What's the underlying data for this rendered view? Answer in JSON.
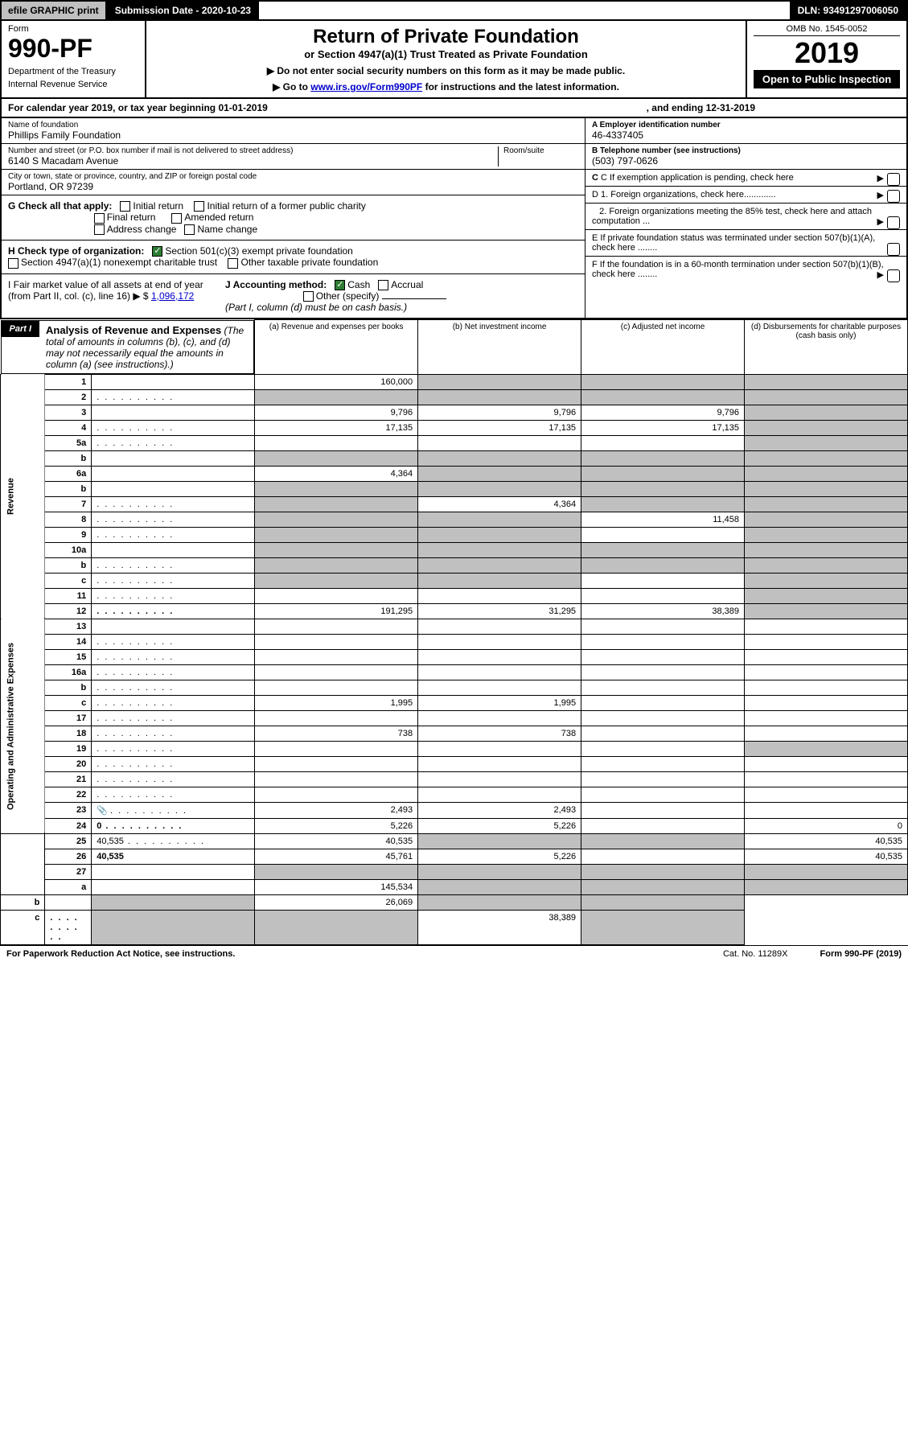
{
  "topbar": {
    "print": "efile GRAPHIC print",
    "submission": "Submission Date - 2020-10-23",
    "dln": "DLN: 93491297006050"
  },
  "header": {
    "form_label": "Form",
    "form_num": "990-PF",
    "dept1": "Department of the Treasury",
    "dept2": "Internal Revenue Service",
    "title": "Return of Private Foundation",
    "subtitle": "or Section 4947(a)(1) Trust Treated as Private Foundation",
    "note1": "▶ Do not enter social security numbers on this form as it may be made public.",
    "note2_pre": "▶ Go to ",
    "note2_link": "www.irs.gov/Form990PF",
    "note2_post": " for instructions and the latest information.",
    "omb": "OMB No. 1545-0052",
    "year": "2019",
    "open": "Open to Public Inspection"
  },
  "calyear": {
    "text": "For calendar year 2019, or tax year beginning 01-01-2019",
    "end": ", and ending 12-31-2019"
  },
  "info": {
    "name_label": "Name of foundation",
    "name": "Phillips Family Foundation",
    "addr_label": "Number and street (or P.O. box number if mail is not delivered to street address)",
    "addr": "6140 S Macadam Avenue",
    "room_label": "Room/suite",
    "city_label": "City or town, state or province, country, and ZIP or foreign postal code",
    "city": "Portland, OR  97239",
    "ein_label": "A Employer identification number",
    "ein": "46-4337405",
    "tel_label": "B Telephone number (see instructions)",
    "tel": "(503) 797-0626",
    "c": "C If exemption application is pending, check here",
    "d1": "D 1. Foreign organizations, check here.............",
    "d2": "2. Foreign organizations meeting the 85% test, check here and attach computation ...",
    "e": "E If private foundation status was terminated under section 507(b)(1)(A), check here ........",
    "f": "F If the foundation is in a 60-month termination under section 507(b)(1)(B), check here ........"
  },
  "checks": {
    "g_label": "G Check all that apply:",
    "g_opts": [
      "Initial return",
      "Final return",
      "Address change",
      "Initial return of a former public charity",
      "Amended return",
      "Name change"
    ],
    "h_label": "H Check type of organization:",
    "h1": "Section 501(c)(3) exempt private foundation",
    "h2": "Section 4947(a)(1) nonexempt charitable trust",
    "h3": "Other taxable private foundation",
    "i_label": "I Fair market value of all assets at end of year (from Part II, col. (c), line 16) ▶ $",
    "i_val": "1,096,172",
    "j_label": "J Accounting method:",
    "j_cash": "Cash",
    "j_accrual": "Accrual",
    "j_other": "Other (specify)",
    "j_note": "(Part I, column (d) must be on cash basis.)"
  },
  "part1": {
    "tag": "Part I",
    "title": "Analysis of Revenue and Expenses",
    "title_note": " (The total of amounts in columns (b), (c), and (d) may not necessarily equal the amounts in column (a) (see instructions).)",
    "col_a": "(a)   Revenue and expenses per books",
    "col_b": "(b)  Net investment income",
    "col_c": "(c)  Adjusted net income",
    "col_d": "(d)  Disbursements for charitable purposes (cash basis only)"
  },
  "revenue_label": "Revenue",
  "expenses_label": "Operating and Administrative Expenses",
  "rows": [
    {
      "n": "1",
      "d": "",
      "a": "160,000",
      "b": "",
      "c": "",
      "shB": true,
      "shC": true,
      "shD": true
    },
    {
      "n": "2",
      "d": "",
      "a": "",
      "b": "",
      "c": "",
      "shA": true,
      "shB": true,
      "shC": true,
      "shD": true,
      "dots": true
    },
    {
      "n": "3",
      "d": "",
      "a": "9,796",
      "b": "9,796",
      "c": "9,796",
      "shD": true
    },
    {
      "n": "4",
      "d": "",
      "a": "17,135",
      "b": "17,135",
      "c": "17,135",
      "shD": true,
      "dots": true
    },
    {
      "n": "5a",
      "d": "",
      "a": "",
      "b": "",
      "c": "",
      "shD": true,
      "dots": true
    },
    {
      "n": "b",
      "d": "",
      "a": "",
      "b": "",
      "c": "",
      "shA": true,
      "shB": true,
      "shC": true,
      "shD": true
    },
    {
      "n": "6a",
      "d": "",
      "a": "4,364",
      "b": "",
      "c": "",
      "shB": true,
      "shC": true,
      "shD": true
    },
    {
      "n": "b",
      "d": "",
      "a": "",
      "b": "",
      "c": "",
      "shA": true,
      "shB": true,
      "shC": true,
      "shD": true
    },
    {
      "n": "7",
      "d": "",
      "a": "",
      "b": "4,364",
      "c": "",
      "shA": true,
      "shC": true,
      "shD": true,
      "dots": true
    },
    {
      "n": "8",
      "d": "",
      "a": "",
      "b": "",
      "c": "11,458",
      "shA": true,
      "shB": true,
      "shD": true,
      "dots": true
    },
    {
      "n": "9",
      "d": "",
      "a": "",
      "b": "",
      "c": "",
      "shA": true,
      "shB": true,
      "shD": true,
      "dots": true
    },
    {
      "n": "10a",
      "d": "",
      "a": "",
      "b": "",
      "c": "",
      "shA": true,
      "shB": true,
      "shC": true,
      "shD": true
    },
    {
      "n": "b",
      "d": "",
      "a": "",
      "b": "",
      "c": "",
      "shA": true,
      "shB": true,
      "shC": true,
      "shD": true,
      "dots": true
    },
    {
      "n": "c",
      "d": "",
      "a": "",
      "b": "",
      "c": "",
      "shA": true,
      "shB": true,
      "shD": true,
      "dots": true
    },
    {
      "n": "11",
      "d": "",
      "a": "",
      "b": "",
      "c": "",
      "shD": true,
      "dots": true
    },
    {
      "n": "12",
      "d": "",
      "a": "191,295",
      "b": "31,295",
      "c": "38,389",
      "shD": true,
      "bold": true,
      "dots": true
    },
    {
      "n": "13",
      "d": "",
      "a": "",
      "b": "",
      "c": ""
    },
    {
      "n": "14",
      "d": "",
      "a": "",
      "b": "",
      "c": "",
      "dots": true
    },
    {
      "n": "15",
      "d": "",
      "a": "",
      "b": "",
      "c": "",
      "dots": true
    },
    {
      "n": "16a",
      "d": "",
      "a": "",
      "b": "",
      "c": "",
      "dots": true
    },
    {
      "n": "b",
      "d": "",
      "a": "",
      "b": "",
      "c": "",
      "dots": true
    },
    {
      "n": "c",
      "d": "",
      "a": "1,995",
      "b": "1,995",
      "c": "",
      "dots": true
    },
    {
      "n": "17",
      "d": "",
      "a": "",
      "b": "",
      "c": "",
      "dots": true
    },
    {
      "n": "18",
      "d": "",
      "a": "738",
      "b": "738",
      "c": "",
      "dots": true
    },
    {
      "n": "19",
      "d": "",
      "a": "",
      "b": "",
      "c": "",
      "shD": true,
      "dots": true
    },
    {
      "n": "20",
      "d": "",
      "a": "",
      "b": "",
      "c": "",
      "dots": true
    },
    {
      "n": "21",
      "d": "",
      "a": "",
      "b": "",
      "c": "",
      "dots": true
    },
    {
      "n": "22",
      "d": "",
      "a": "",
      "b": "",
      "c": "",
      "dots": true
    },
    {
      "n": "23",
      "d": "",
      "a": "2,493",
      "b": "2,493",
      "c": "",
      "icon": true,
      "dots": true
    },
    {
      "n": "24",
      "d": "0",
      "a": "5,226",
      "b": "5,226",
      "c": "",
      "bold": true,
      "dots": true
    },
    {
      "n": "25",
      "d": "40,535",
      "a": "40,535",
      "b": "",
      "c": "",
      "shB": true,
      "shC": true,
      "dots": true
    },
    {
      "n": "26",
      "d": "40,535",
      "a": "45,761",
      "b": "5,226",
      "c": "",
      "bold": true
    },
    {
      "n": "27",
      "d": "",
      "a": "",
      "b": "",
      "c": "",
      "shA": true,
      "shB": true,
      "shC": true,
      "shD": true
    },
    {
      "n": "a",
      "d": "",
      "a": "145,534",
      "b": "",
      "c": "",
      "shB": true,
      "shC": true,
      "shD": true,
      "bold": true
    },
    {
      "n": "b",
      "d": "",
      "a": "",
      "b": "26,069",
      "c": "",
      "shA": true,
      "shC": true,
      "shD": true,
      "bold": true
    },
    {
      "n": "c",
      "d": "",
      "a": "",
      "b": "",
      "c": "38,389",
      "shA": true,
      "shB": true,
      "shD": true,
      "bold": true,
      "dots": true
    }
  ],
  "footer": {
    "pra": "For Paperwork Reduction Act Notice, see instructions.",
    "cat": "Cat. No. 11289X",
    "form": "Form 990-PF (2019)"
  }
}
